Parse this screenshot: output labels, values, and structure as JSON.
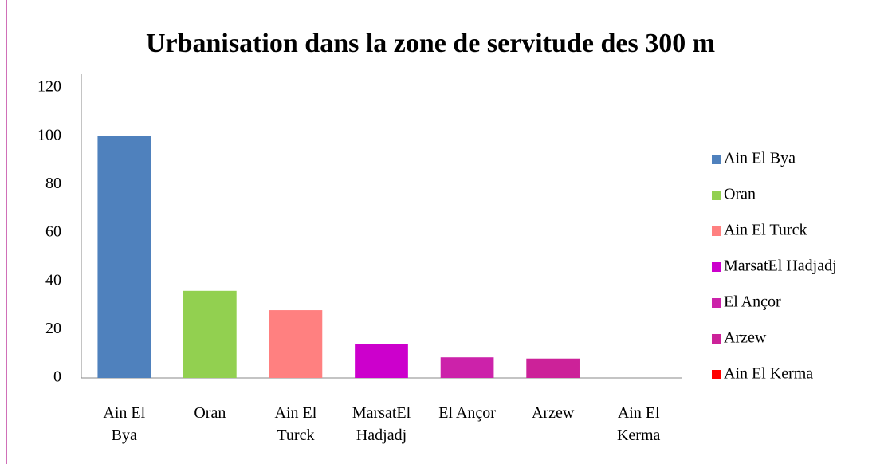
{
  "chart_data": {
    "type": "bar",
    "title": "Urbanisation dans la zone de servitude  des 300 m",
    "categories": [
      "Ain El Bya",
      "Oran",
      "Ain El Turck",
      "MarsatEl Hadjadj",
      "El Ançor",
      "Arzew",
      "Ain El Kerma"
    ],
    "values": [
      100,
      36,
      28,
      14,
      8.5,
      8,
      0
    ],
    "colors": [
      "#4f81bd",
      "#92d050",
      "#ff8080",
      "#cc00cc",
      "#cc22aa",
      "#cc2299",
      "#ff0000"
    ],
    "ylim": [
      0,
      120
    ],
    "yticks": [
      0,
      20,
      40,
      60,
      80,
      100,
      120
    ],
    "grid": false,
    "legend": "right"
  }
}
